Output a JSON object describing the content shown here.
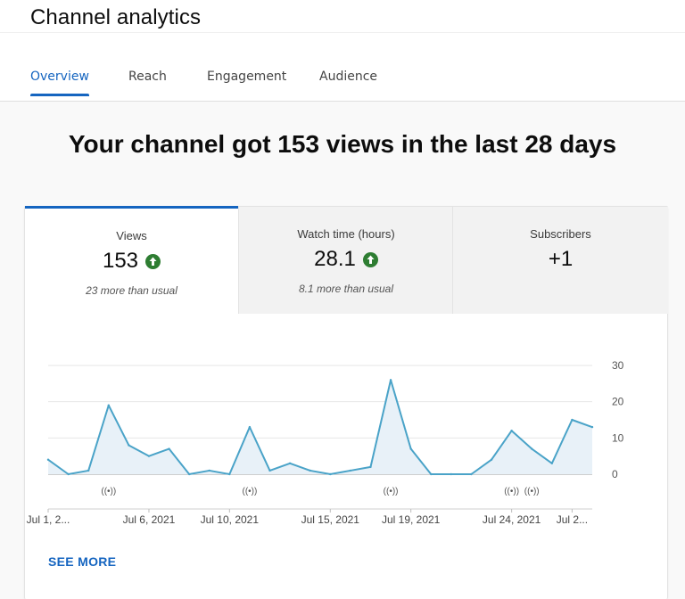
{
  "app_title": "Channel analytics",
  "tabs": [
    {
      "label": "Overview",
      "active": true
    },
    {
      "label": "Reach",
      "active": false
    },
    {
      "label": "Engagement",
      "active": false
    },
    {
      "label": "Audience",
      "active": false
    }
  ],
  "headline": "Your channel got 153 views in the last 28 days",
  "metrics": [
    {
      "label": "Views",
      "value": "153",
      "trend": "up",
      "sub": "23 more than usual",
      "selected": true
    },
    {
      "label": "Watch time (hours)",
      "value": "28.1",
      "trend": "up",
      "sub": "8.1 more than usual",
      "selected": false
    },
    {
      "label": "Subscribers",
      "value": "+1",
      "trend": "",
      "sub": "",
      "selected": false
    }
  ],
  "colors": {
    "accent": "#1565c0",
    "trend_up": "#2e7d32",
    "line": "#4aa3c8",
    "area": "#e8f1f8"
  },
  "see_more": "SEE MORE",
  "chart_data": {
    "type": "area",
    "series": [
      {
        "values": [
          4,
          0,
          1,
          19,
          8,
          5,
          7,
          0,
          1,
          0,
          13,
          1,
          3,
          1,
          0,
          1,
          2,
          26,
          7,
          0,
          0,
          0,
          4,
          12,
          7,
          3,
          15,
          13
        ]
      }
    ],
    "ylim": [
      0,
      30
    ],
    "yticks": [
      0,
      10,
      20,
      30
    ],
    "grid": true,
    "xtick_labels": [
      {
        "label": "Jul 1, 2...",
        "index": 0
      },
      {
        "label": "Jul 6, 2021",
        "index": 5
      },
      {
        "label": "Jul 10, 2021",
        "index": 9
      },
      {
        "label": "Jul 15, 2021",
        "index": 14
      },
      {
        "label": "Jul 19, 2021",
        "index": 18
      },
      {
        "label": "Jul 24, 2021",
        "index": 23
      },
      {
        "label": "Jul 2...",
        "index": 26
      }
    ],
    "event_markers": [
      {
        "label": "((•))",
        "index": 3
      },
      {
        "label": "((•))",
        "index": 10
      },
      {
        "label": "((•))",
        "index": 17
      },
      {
        "label": "((•))",
        "index": 23
      },
      {
        "label": "((•))",
        "index": 24
      }
    ]
  }
}
